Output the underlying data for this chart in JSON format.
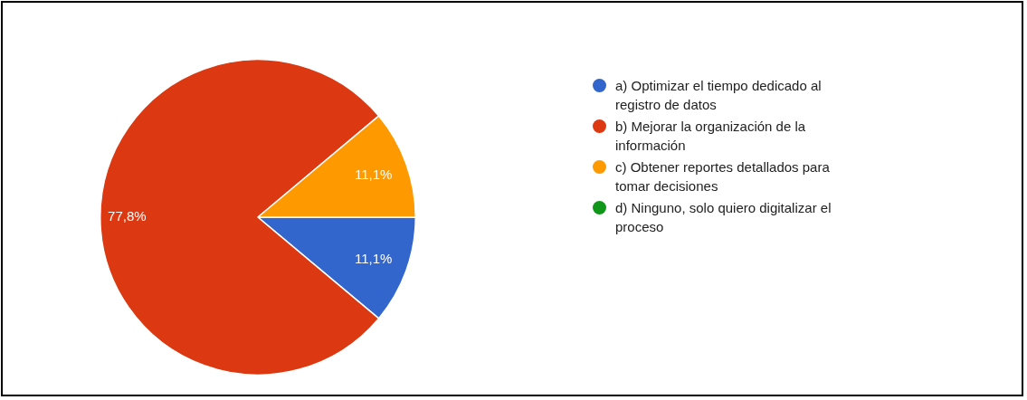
{
  "chart_data": {
    "type": "pie",
    "categories": [
      "a) Optimizar el tiempo dedicado al registro de datos",
      "b) Mejorar la organización de la información",
      "c) Obtener reportes detallados para tomar decisiones",
      "d) Ninguno, solo quiero digitalizar el proceso"
    ],
    "values": [
      11.1,
      77.8,
      11.1,
      0
    ],
    "colors": [
      "#3366cc",
      "#dc3912",
      "#ff9900",
      "#109618"
    ],
    "value_labels": [
      "11,1%",
      "77,8%",
      "11,1%",
      null
    ],
    "legend": "right"
  }
}
